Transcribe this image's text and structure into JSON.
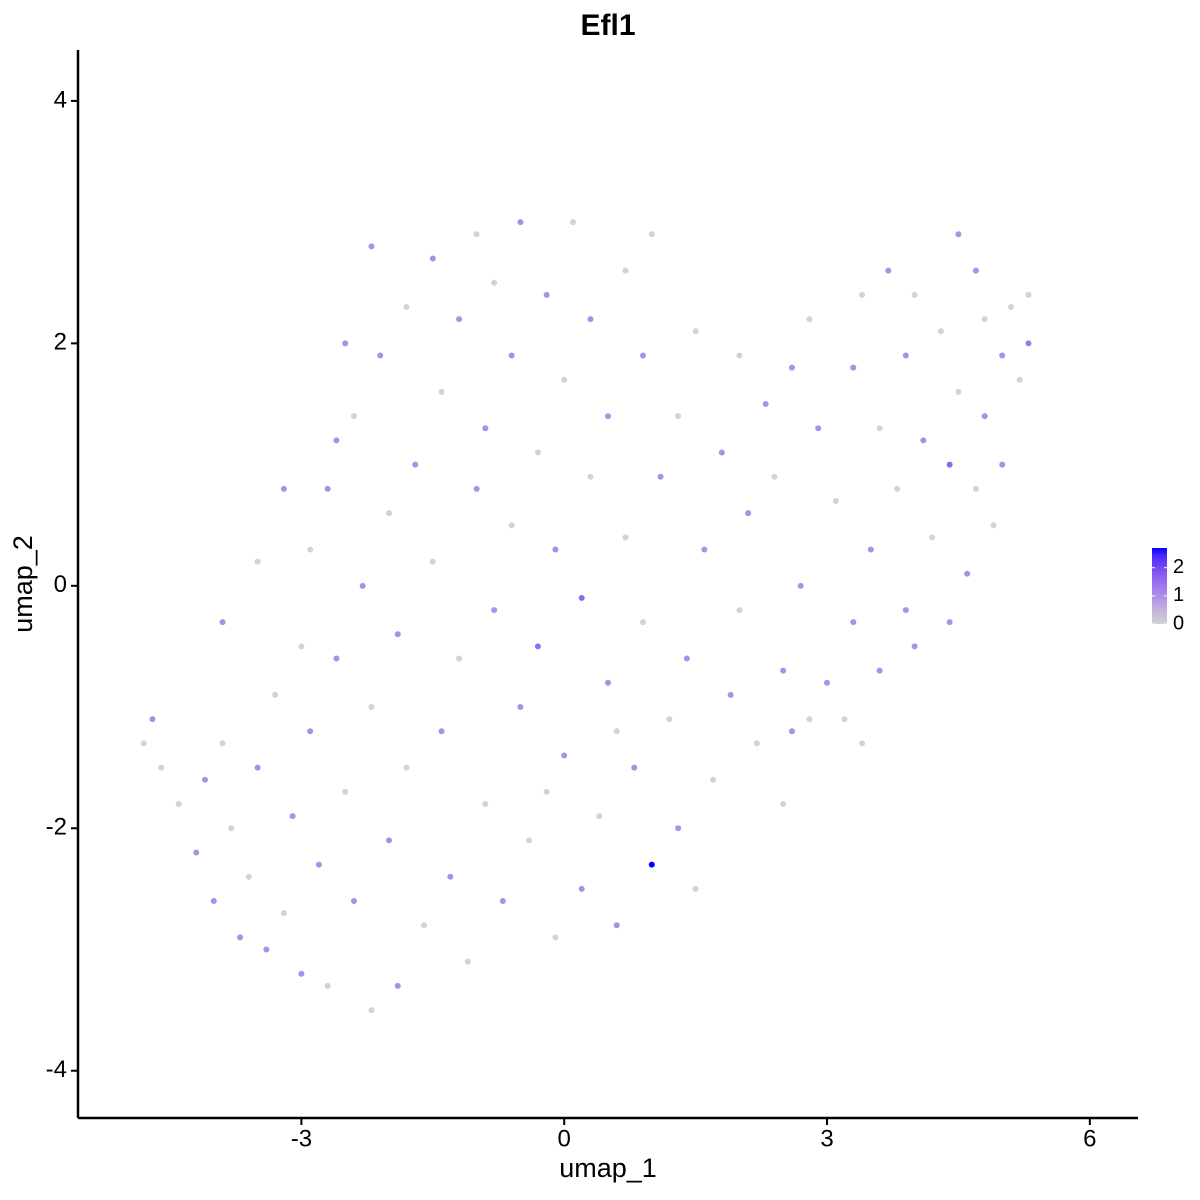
{
  "chart_data": {
    "type": "scatter",
    "title": "Efl1",
    "xlabel": "umap_1",
    "ylabel": "umap_2",
    "xlim": [
      -5.55,
      6.55
    ],
    "ylim": [
      -4.39,
      4.42
    ],
    "xticks": [
      -3,
      0,
      3,
      6
    ],
    "yticks": [
      -4,
      -2,
      0,
      2,
      4
    ],
    "colorbar": {
      "lim": [
        0,
        2.7
      ],
      "ticks": [
        0,
        1,
        2
      ],
      "low": "#d3d3d3",
      "high": "#0000ff"
    },
    "x": [
      -4.8,
      -4.7,
      -4.6,
      -4.4,
      -4.2,
      -4.1,
      -4.0,
      -3.9,
      -3.8,
      -3.7,
      -3.6,
      -3.5,
      -3.4,
      -3.3,
      -3.2,
      -3.1,
      -3.0,
      -2.9,
      -2.9,
      -2.8,
      -2.7,
      -2.7,
      -2.6,
      -2.5,
      -2.4,
      -2.4,
      -2.3,
      -2.2,
      -2.2,
      -2.1,
      -2.0,
      -2.0,
      -1.9,
      -1.9,
      -1.8,
      -1.8,
      -1.7,
      -1.6,
      -1.5,
      -1.5,
      -1.4,
      -1.4,
      -1.3,
      -1.2,
      -1.2,
      -1.1,
      -1.0,
      -1.0,
      -0.9,
      -0.9,
      -0.8,
      -0.8,
      -0.7,
      -0.6,
      -0.6,
      -0.5,
      -0.5,
      -0.4,
      -0.3,
      -0.3,
      -0.2,
      -0.1,
      -0.1,
      0.0,
      0.0,
      0.1,
      0.2,
      0.2,
      0.3,
      0.3,
      0.4,
      0.5,
      0.5,
      0.6,
      0.7,
      0.7,
      0.8,
      0.9,
      0.9,
      1.0,
      1.0,
      1.1,
      1.2,
      1.3,
      1.3,
      1.4,
      1.5,
      1.6,
      1.7,
      1.8,
      1.9,
      2.0,
      2.0,
      2.1,
      2.2,
      2.3,
      2.4,
      2.5,
      2.5,
      2.6,
      2.7,
      2.8,
      2.8,
      2.9,
      3.0,
      3.1,
      3.2,
      3.3,
      3.3,
      3.4,
      3.5,
      3.6,
      3.6,
      3.7,
      3.8,
      3.9,
      3.9,
      4.0,
      4.1,
      4.2,
      4.3,
      4.4,
      4.4,
      4.5,
      4.5,
      4.6,
      4.7,
      4.7,
      4.8,
      4.8,
      4.9,
      5.0,
      5.0,
      5.1,
      5.2,
      5.3,
      5.3,
      -3.9,
      -3.5,
      -3.2,
      -3.0,
      -2.6,
      -2.5,
      -2.2,
      -0.2,
      0.6,
      1.5,
      2.6,
      3.4,
      4.0
    ],
    "y": [
      -1.3,
      -1.1,
      -1.5,
      -1.8,
      -2.2,
      -1.6,
      -2.6,
      -1.3,
      -2.0,
      -2.9,
      -2.4,
      -1.5,
      -3.0,
      -0.9,
      -2.7,
      -1.9,
      -3.2,
      0.3,
      -1.2,
      -2.3,
      0.8,
      -3.3,
      -0.6,
      -1.7,
      -2.6,
      1.4,
      0.0,
      -3.5,
      -1.0,
      1.9,
      -2.1,
      0.6,
      -3.3,
      -0.4,
      2.3,
      -1.5,
      1.0,
      -2.8,
      0.2,
      2.7,
      -1.2,
      1.6,
      -2.4,
      -0.6,
      2.2,
      -3.1,
      0.8,
      2.9,
      -1.8,
      1.3,
      -0.2,
      2.5,
      -2.6,
      0.5,
      1.9,
      -1.0,
      3.0,
      -2.1,
      1.1,
      -0.5,
      2.4,
      -2.9,
      0.3,
      1.7,
      -1.4,
      3.0,
      -0.1,
      -2.5,
      0.9,
      2.2,
      -1.9,
      -0.8,
      1.4,
      -2.8,
      2.6,
      0.4,
      -1.5,
      1.9,
      -0.3,
      -2.3,
      2.9,
      0.9,
      -1.1,
      1.4,
      -2.0,
      -0.6,
      2.1,
      0.3,
      -1.6,
      1.1,
      -0.9,
      1.9,
      -0.2,
      0.6,
      -1.3,
      1.5,
      0.9,
      -0.7,
      -1.8,
      1.8,
      0.0,
      -1.1,
      2.2,
      1.3,
      -0.8,
      0.7,
      -1.1,
      1.8,
      -0.3,
      2.4,
      0.3,
      -0.7,
      1.3,
      2.6,
      0.8,
      -0.2,
      1.9,
      2.4,
      1.2,
      0.4,
      2.1,
      1.0,
      -0.3,
      2.9,
      1.6,
      0.1,
      2.6,
      0.8,
      2.2,
      1.4,
      0.5,
      1.9,
      1.0,
      2.3,
      1.7,
      2.0,
      2.4,
      -0.3,
      0.2,
      0.8,
      -0.5,
      1.2,
      2.0,
      2.8,
      -1.7,
      -1.2,
      -2.5,
      -1.2,
      -1.3,
      -0.5
    ],
    "values": [
      0,
      1,
      0,
      0,
      1,
      1,
      1,
      0,
      0,
      1,
      0,
      1,
      1,
      0,
      0,
      1,
      1,
      0,
      1,
      1,
      1,
      0,
      1,
      0,
      1,
      0,
      1,
      0,
      0,
      1,
      1,
      0,
      1,
      1,
      0,
      0,
      1,
      0,
      0,
      1,
      1,
      0,
      1,
      0,
      1,
      0,
      1,
      0,
      0,
      1,
      1,
      0,
      1,
      0,
      1,
      1,
      1,
      0,
      0,
      1.5,
      1,
      0,
      1,
      0,
      1,
      0,
      1.6,
      1,
      0,
      1,
      0,
      1,
      1,
      1,
      0,
      0,
      1,
      1,
      0,
      2.7,
      0,
      1,
      0,
      0,
      1,
      1,
      0,
      1,
      0,
      1,
      1,
      0,
      0,
      1,
      0,
      1,
      0,
      1,
      0,
      1,
      1,
      0,
      0,
      1,
      1,
      0,
      0,
      1,
      1,
      0,
      1,
      1,
      0,
      1,
      0,
      1,
      1,
      0,
      1,
      0,
      0,
      1.6,
      1,
      1,
      0,
      1,
      1,
      0,
      0,
      1,
      0,
      1,
      1,
      0,
      0,
      1.3,
      0,
      1,
      0,
      1,
      0,
      1,
      1,
      1,
      0,
      0,
      0,
      1,
      0,
      1
    ]
  }
}
